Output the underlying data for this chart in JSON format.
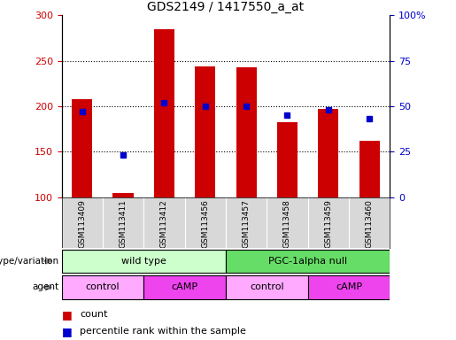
{
  "title": "GDS2149 / 1417550_a_at",
  "samples": [
    "GSM113409",
    "GSM113411",
    "GSM113412",
    "GSM113456",
    "GSM113457",
    "GSM113458",
    "GSM113460"
  ],
  "samples_all": [
    "GSM113409",
    "GSM113411",
    "GSM113412",
    "GSM113456",
    "GSM113457",
    "GSM113458",
    "GSM113459",
    "GSM113460"
  ],
  "counts": [
    208,
    105,
    285,
    244,
    243,
    182,
    197,
    162
  ],
  "percentiles": [
    47,
    23,
    52,
    50,
    50,
    45,
    48,
    43
  ],
  "ylim_left": [
    100,
    300
  ],
  "ylim_right": [
    0,
    100
  ],
  "yticks_left": [
    100,
    150,
    200,
    250,
    300
  ],
  "yticks_right": [
    0,
    25,
    50,
    75,
    100
  ],
  "ytick_labels_right": [
    "0",
    "25",
    "50",
    "75",
    "100%"
  ],
  "bar_color": "#cc0000",
  "dot_color": "#0000cc",
  "bar_width": 0.5,
  "genotype_labels": [
    "wild type",
    "PGC-1alpha null"
  ],
  "genotype_colors": [
    "#ccffcc",
    "#66dd66"
  ],
  "agent_labels": [
    "control",
    "cAMP",
    "control",
    "cAMP"
  ],
  "agent_colors_light": "#ffaaff",
  "agent_colors_dark": "#ee44ee",
  "legend_count_color": "#cc0000",
  "legend_pct_color": "#0000cc",
  "label_genotype": "genotype/variation",
  "label_agent": "agent",
  "tick_label_fontsize": 6.5,
  "axis_label_color_left": "#cc0000",
  "axis_label_color_right": "#0000cc",
  "gray_bg": "#d8d8d8"
}
